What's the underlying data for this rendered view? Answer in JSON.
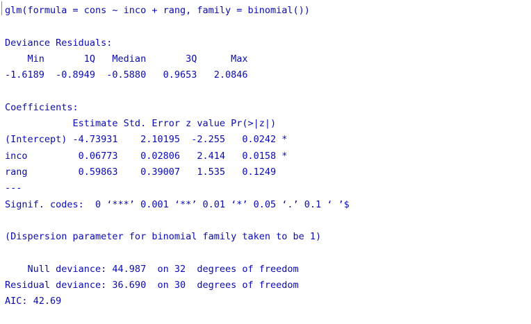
{
  "console": {
    "lines": [
      "glm(formula = cons ~ inco + rang, family = binomial())",
      "",
      "Deviance Residuals:",
      "    Min       1Q   Median       3Q      Max",
      "-1.6189  -0.8949  -0.5880   0.9653   2.0846",
      "",
      "Coefficients:",
      "            Estimate Std. Error z value Pr(>|z|)",
      "(Intercept) -4.73931    2.10195  -2.255   0.0242 *",
      "inco         0.06773    0.02806   2.414   0.0158 *",
      "rang         0.59863    0.39007   1.535   0.1249",
      "---",
      "Signif. codes:  0 ‘***’ 0.001 ‘**’ 0.01 ‘*’ 0.05 ‘.’ 0.1 ‘ ’$",
      "",
      "(Dispersion parameter for binomial family taken to be 1)",
      "",
      "    Null deviance: 44.987  on 32  degrees of freedom",
      "Residual deviance: 36.690  on 30  degrees of freedom",
      "AIC: 42.69"
    ]
  },
  "colors": {
    "text": "#0a0ab0",
    "background": "#ffffff"
  }
}
